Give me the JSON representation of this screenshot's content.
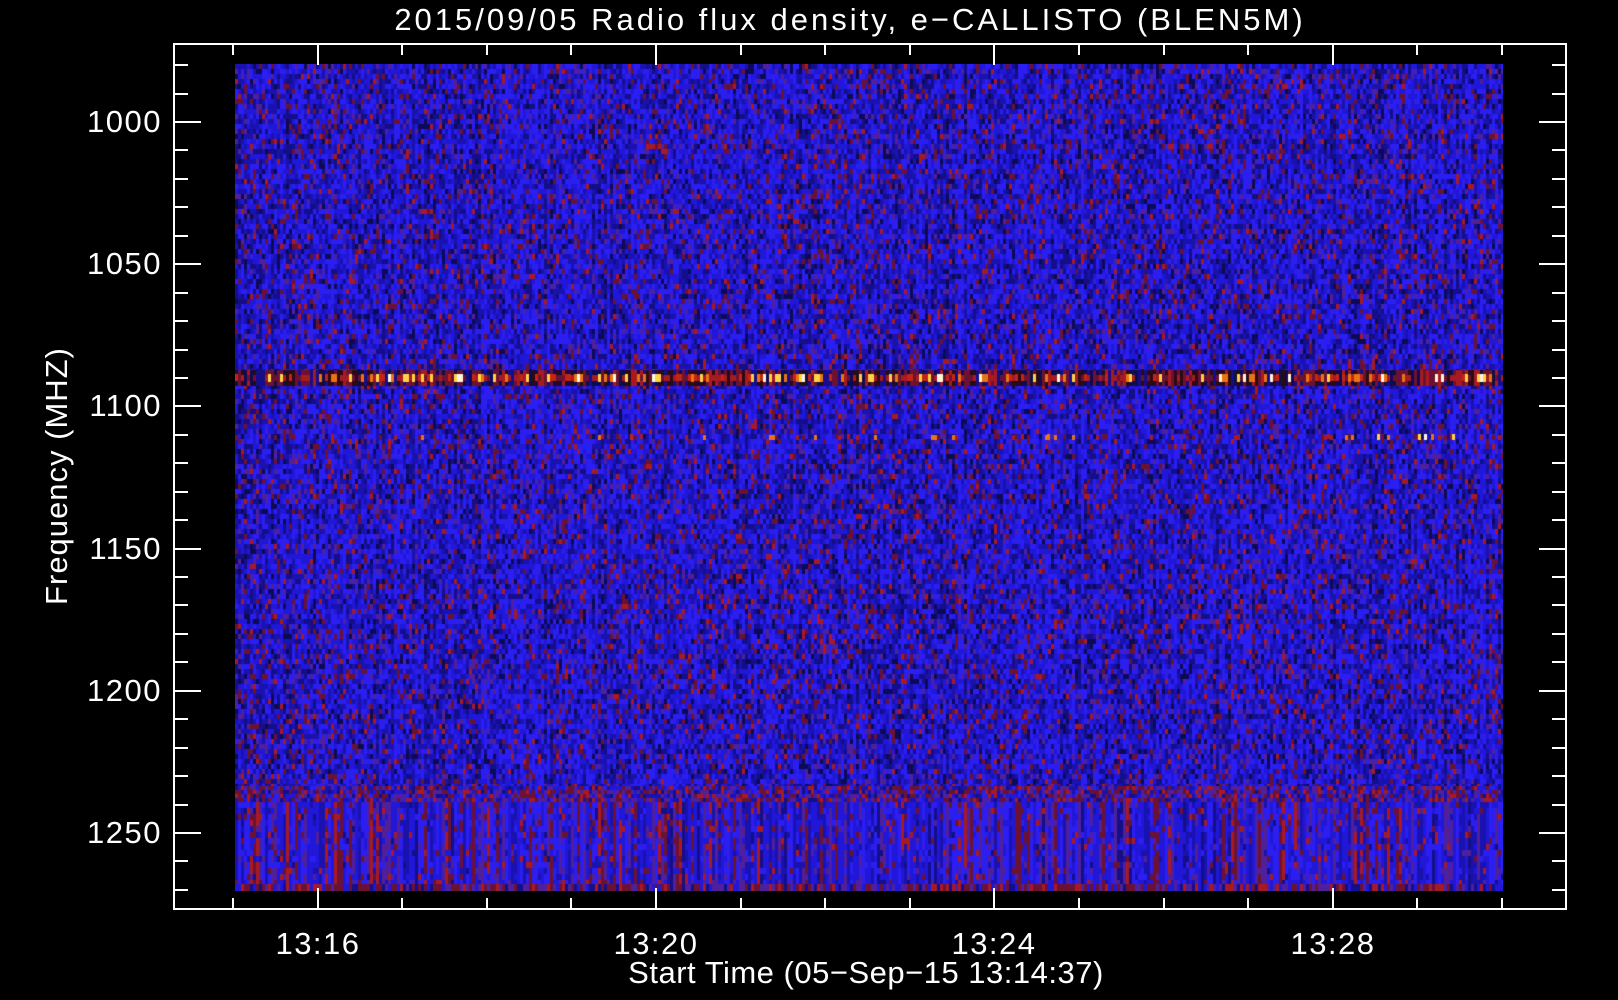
{
  "page": {
    "background": "#000000"
  },
  "chart": {
    "title": "2015/09/05  Radio flux density, e−CALLISTO (BLEN5M)",
    "xlabel": "Start Time (05−Sep−15 13:14:37)",
    "ylabel": "Frequency (MHZ)",
    "x_tick_labels": [
      "13:16",
      "13:20",
      "13:24",
      "13:28"
    ],
    "y_tick_labels": [
      "1000",
      "1050",
      "1100",
      "1150",
      "1200",
      "1250"
    ]
  },
  "chart_data": {
    "type": "heatmap",
    "title": "2015/09/05  Radio flux density, e−CALLISTO (BLEN5M)",
    "xlabel": "Start Time (05−Sep−15 13:14:37)",
    "ylabel": "Frequency (MHZ)",
    "date": "2015/09/05",
    "instrument": "e-CALLISTO (BLEN5M)",
    "x_start_time": "13:14:37",
    "x_end_time": "13:30:00",
    "x_major_ticks": [
      "13:16",
      "13:20",
      "13:24",
      "13:28"
    ],
    "x_minor_tick_interval_min": 1,
    "y_axis_inverted": true,
    "y_range_mhz": [
      972,
      1277
    ],
    "y_major_ticks": [
      1000,
      1050,
      1100,
      1150,
      1200,
      1250
    ],
    "y_minor_tick_interval_mhz": 10,
    "description": "Broadband blue background noise with sparse red/purple speckles; no solar burst visible",
    "features": [
      {
        "type": "horizontal_rfi_line",
        "frequency_mhz": 1090,
        "description": "bright dashed interference line with dark red, red, orange, yellow and white dashes across full time range"
      },
      {
        "type": "horizontal_rfi_line",
        "frequency_mhz": 1112,
        "description": "faint interference row with sparse red dashes and a few bright yellow/white specks near 13:27-13:29"
      },
      {
        "type": "noise_band",
        "frequency_range_mhz": [
          1243,
          1260
        ],
        "description": "dense purple/red mottled row then strongly vertically-striped blue/purple/red band at bottom of image"
      },
      {
        "type": "noise_band",
        "frequency_range_mhz": [
          1272,
          1277
        ],
        "description": "red-speckled bottom edge row"
      }
    ],
    "colors": {
      "background": "#000000",
      "axis": "#ffffff",
      "text": "#ffffff",
      "noise_blue_bright": "#2b1ef0",
      "noise_blue": "#2017d8",
      "noise_blue_mid": "#1a12ae",
      "noise_blue_dark": "#140e88",
      "noise_navy": "#0d0a55",
      "noise_purple": "#50209a",
      "noise_maroon": "#6b1232",
      "noise_red": "#a81a22",
      "rfi_dark": "#2a0a14",
      "rfi_red": "#c42414",
      "rfi_orange": "#e87414",
      "rfi_yellow": "#ffd24a",
      "rfi_white": "#fff6dc"
    }
  }
}
